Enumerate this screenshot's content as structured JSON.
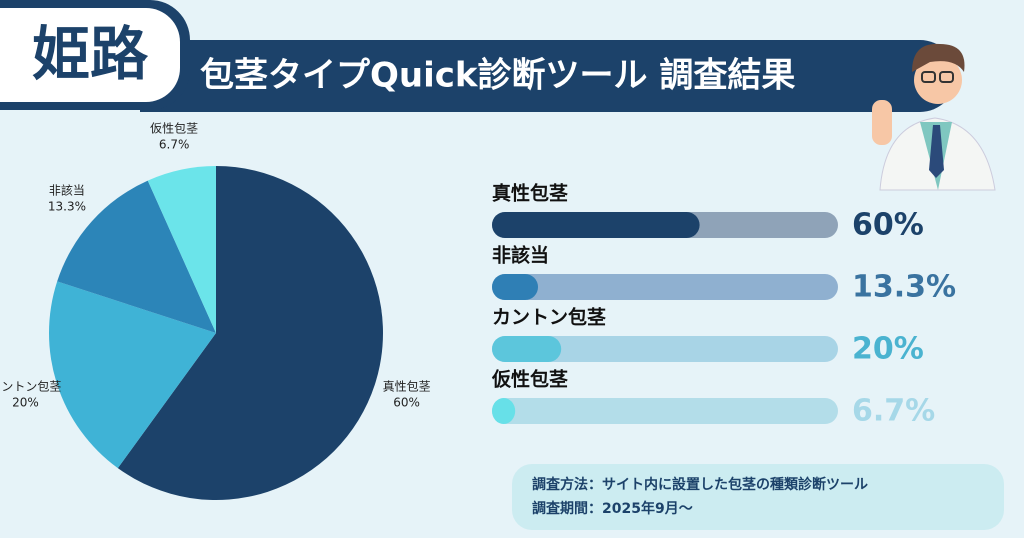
{
  "header": {
    "badge": "姫路",
    "title": "包茎タイプQuick診断ツール 調査結果"
  },
  "notes": [
    "調査方法：サイト内に設置した包茎の種類診断ツール",
    "調査期間：2025年9月〜"
  ],
  "chart_data": [
    {
      "type": "pie",
      "categories": [
        "真性包茎",
        "カントン包茎",
        "非該当",
        "仮性包茎"
      ],
      "values": [
        60,
        20,
        13.3,
        6.7
      ],
      "value_labels": [
        "60%",
        "20%",
        "13.3%",
        "6.7%"
      ],
      "colors": [
        "#1c426a",
        "#3fb3d6",
        "#2c85b8",
        "#6be4ea"
      ]
    },
    {
      "type": "bar",
      "categories": [
        "真性包茎",
        "非該当",
        "カントン包茎",
        "仮性包茎"
      ],
      "values": [
        60,
        13.3,
        20,
        6.7
      ],
      "value_labels": [
        "60%",
        "13.3%",
        "20%",
        "6.7%"
      ],
      "xlim": [
        0,
        100
      ],
      "colors": [
        "#1c426a",
        "#2f7fb5",
        "#5cc6dc",
        "#67e0e8"
      ],
      "track_colors": [
        "#8fa3b8",
        "#8fb0d0",
        "#a8d4e6",
        "#b3dde9"
      ],
      "label_colors": [
        "#1c426a",
        "#3a73a0",
        "#4ab3d0",
        "#a6d8e8"
      ]
    }
  ]
}
